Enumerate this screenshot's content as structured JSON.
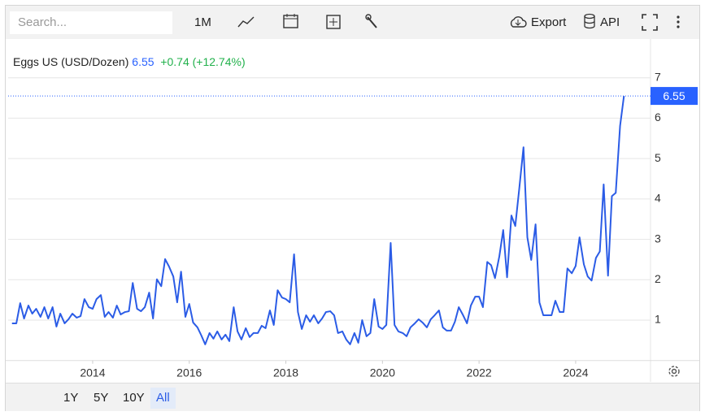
{
  "toolbar": {
    "search_placeholder": "Search...",
    "interval": "1M",
    "export": "Export",
    "api": "API"
  },
  "chart_data": {
    "type": "line",
    "x": [
      2012.33,
      2012.42,
      2012.5,
      2012.58,
      2012.67,
      2012.75,
      2012.83,
      2012.92,
      2013.0,
      2013.08,
      2013.17,
      2013.25,
      2013.33,
      2013.42,
      2013.5,
      2013.58,
      2013.67,
      2013.75,
      2013.83,
      2013.92,
      2014.0,
      2014.08,
      2014.17,
      2014.25,
      2014.33,
      2014.42,
      2014.5,
      2014.58,
      2014.67,
      2014.75,
      2014.83,
      2014.92,
      2015.0,
      2015.08,
      2015.17,
      2015.25,
      2015.33,
      2015.42,
      2015.5,
      2015.58,
      2015.67,
      2015.75,
      2015.83,
      2015.92,
      2016.0,
      2016.08,
      2016.17,
      2016.25,
      2016.33,
      2016.42,
      2016.5,
      2016.58,
      2016.67,
      2016.75,
      2016.83,
      2016.92,
      2017.0,
      2017.08,
      2017.17,
      2017.25,
      2017.33,
      2017.42,
      2017.5,
      2017.58,
      2017.67,
      2017.75,
      2017.83,
      2017.92,
      2018.0,
      2018.08,
      2018.17,
      2018.25,
      2018.33,
      2018.42,
      2018.5,
      2018.58,
      2018.67,
      2018.75,
      2018.83,
      2018.92,
      2019.0,
      2019.08,
      2019.17,
      2019.25,
      2019.33,
      2019.42,
      2019.5,
      2019.58,
      2019.67,
      2019.75,
      2019.83,
      2019.92,
      2020.0,
      2020.08,
      2020.17,
      2020.25,
      2020.33,
      2020.42,
      2020.5,
      2020.58,
      2020.67,
      2020.75,
      2020.83,
      2020.92,
      2021.0,
      2021.08,
      2021.17,
      2021.25,
      2021.33,
      2021.42,
      2021.5,
      2021.58,
      2021.67,
      2021.75,
      2021.83,
      2021.92,
      2022.0,
      2022.08,
      2022.17,
      2022.25,
      2022.33,
      2022.42,
      2022.5,
      2022.58,
      2022.67,
      2022.75,
      2022.83,
      2022.92,
      2023.0,
      2023.08,
      2023.17,
      2023.25,
      2023.33,
      2023.42,
      2023.5,
      2023.58,
      2023.67,
      2023.75,
      2023.83,
      2023.92,
      2024.0,
      2024.08,
      2024.17,
      2024.25,
      2024.33,
      2024.42,
      2024.5,
      2024.58,
      2024.67,
      2024.75,
      2024.83,
      2024.92,
      2025.0
    ],
    "series": [
      {
        "name": "Eggs US (USD/Dozen)",
        "color": "#2b5ce6",
        "values": [
          0.92,
          0.92,
          1.42,
          1.04,
          1.36,
          1.16,
          1.28,
          1.08,
          1.32,
          1.04,
          1.32,
          0.84,
          1.16,
          0.92,
          1.02,
          1.16,
          1.06,
          1.1,
          1.52,
          1.32,
          1.28,
          1.52,
          1.62,
          1.08,
          1.2,
          1.06,
          1.36,
          1.14,
          1.2,
          1.22,
          1.92,
          1.28,
          1.22,
          1.32,
          1.68,
          1.04,
          2.01,
          1.84,
          2.51,
          2.33,
          2.08,
          1.44,
          2.2,
          1.08,
          1.4,
          0.94,
          0.82,
          0.62,
          0.4,
          0.68,
          0.54,
          0.72,
          0.52,
          0.64,
          0.48,
          1.32,
          0.72,
          0.52,
          0.8,
          0.58,
          0.68,
          0.68,
          0.86,
          0.8,
          1.24,
          0.88,
          1.74,
          1.56,
          1.52,
          1.44,
          2.63,
          1.2,
          0.78,
          1.12,
          0.96,
          1.12,
          0.92,
          1.04,
          1.2,
          1.22,
          1.12,
          0.68,
          0.72,
          0.52,
          0.4,
          0.68,
          0.44,
          1.0,
          0.6,
          0.68,
          1.52,
          0.84,
          0.78,
          0.88,
          2.91,
          0.88,
          0.72,
          0.68,
          0.6,
          0.82,
          0.92,
          1.02,
          0.94,
          0.82,
          1.02,
          1.12,
          1.24,
          0.82,
          0.74,
          0.74,
          0.96,
          1.32,
          1.12,
          0.92,
          1.36,
          1.58,
          1.58,
          1.32,
          2.44,
          2.36,
          2.04,
          2.58,
          3.23,
          2.06,
          3.59,
          3.33,
          4.23,
          5.28,
          3.05,
          2.49,
          3.37,
          1.44,
          1.12,
          1.12,
          1.12,
          1.48,
          1.2,
          1.2,
          2.28,
          2.16,
          2.34,
          3.05,
          2.38,
          2.08,
          1.98,
          2.54,
          2.7,
          4.36,
          2.1,
          4.07,
          4.15,
          5.81,
          6.55
        ]
      }
    ],
    "last": 6.55,
    "last_color": "#2962ff",
    "change": "+0.74 (+12.74%)",
    "change_color": "#22b14c",
    "xlim": [
      2012.25,
      2025.55
    ],
    "xticks": [
      2014,
      2016,
      2018,
      2020,
      2022,
      2024
    ],
    "ylim": [
      0,
      8
    ],
    "yticks": [
      1,
      2,
      3,
      4,
      5,
      6,
      7
    ],
    "grid": true
  },
  "range_buttons": [
    "1Y",
    "5Y",
    "10Y",
    "All"
  ],
  "active_range": "All"
}
